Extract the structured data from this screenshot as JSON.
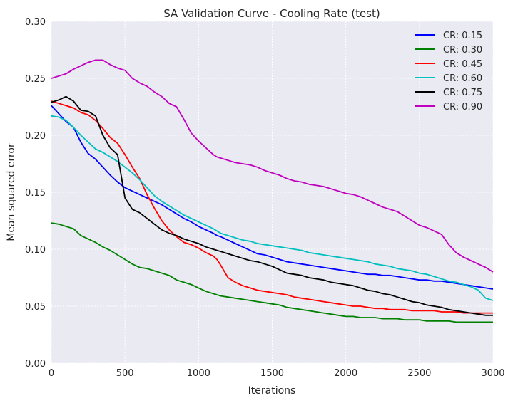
{
  "chart_data": {
    "type": "line",
    "title": "SA Validation Curve - Cooling Rate (test)",
    "xlabel": "Iterations",
    "ylabel": "Mean squared error",
    "xlim": [
      0,
      3000
    ],
    "ylim": [
      0,
      0.3
    ],
    "x_ticks": [
      "0",
      "500",
      "1000",
      "1500",
      "2000",
      "2500",
      "3000"
    ],
    "y_ticks": [
      "0.00",
      "0.05",
      "0.10",
      "0.15",
      "0.20",
      "0.25",
      "0.30"
    ],
    "grid": true,
    "legend_position": "top-right",
    "x": [
      0,
      50,
      100,
      150,
      200,
      250,
      300,
      350,
      400,
      450,
      500,
      550,
      600,
      650,
      700,
      750,
      800,
      850,
      900,
      950,
      1000,
      1050,
      1100,
      1125,
      1150,
      1200,
      1250,
      1300,
      1350,
      1400,
      1450,
      1500,
      1550,
      1600,
      1650,
      1700,
      1750,
      1800,
      1850,
      1900,
      1950,
      2000,
      2050,
      2100,
      2150,
      2200,
      2250,
      2300,
      2350,
      2400,
      2450,
      2500,
      2550,
      2600,
      2650,
      2700,
      2750,
      2800,
      2850,
      2900,
      2950,
      3000
    ],
    "series": [
      {
        "name": "CR: 0.15",
        "color": "#0000ff",
        "values": [
          0.226,
          0.219,
          0.212,
          0.207,
          0.194,
          0.184,
          0.179,
          0.172,
          0.165,
          0.159,
          0.154,
          0.151,
          0.148,
          0.145,
          0.142,
          0.139,
          0.135,
          0.131,
          0.127,
          0.124,
          0.12,
          0.117,
          0.114,
          0.112,
          0.111,
          0.108,
          0.105,
          0.102,
          0.099,
          0.096,
          0.095,
          0.093,
          0.091,
          0.089,
          0.088,
          0.087,
          0.086,
          0.085,
          0.084,
          0.083,
          0.082,
          0.081,
          0.08,
          0.079,
          0.078,
          0.078,
          0.077,
          0.077,
          0.076,
          0.075,
          0.074,
          0.073,
          0.073,
          0.072,
          0.072,
          0.071,
          0.07,
          0.069,
          0.068,
          0.067,
          0.066,
          0.065
        ]
      },
      {
        "name": "CR: 0.30",
        "color": "#008000",
        "values": [
          0.123,
          0.122,
          0.12,
          0.118,
          0.112,
          0.109,
          0.106,
          0.102,
          0.099,
          0.095,
          0.091,
          0.087,
          0.084,
          0.083,
          0.081,
          0.079,
          0.077,
          0.073,
          0.071,
          0.069,
          0.066,
          0.063,
          0.061,
          0.06,
          0.059,
          0.058,
          0.057,
          0.056,
          0.055,
          0.054,
          0.053,
          0.052,
          0.051,
          0.049,
          0.048,
          0.047,
          0.046,
          0.045,
          0.044,
          0.043,
          0.042,
          0.041,
          0.041,
          0.04,
          0.04,
          0.04,
          0.039,
          0.039,
          0.039,
          0.038,
          0.038,
          0.038,
          0.037,
          0.037,
          0.037,
          0.037,
          0.036,
          0.036,
          0.036,
          0.036,
          0.036,
          0.036
        ]
      },
      {
        "name": "CR: 0.45",
        "color": "#ff0000",
        "values": [
          0.23,
          0.228,
          0.226,
          0.224,
          0.22,
          0.218,
          0.213,
          0.206,
          0.198,
          0.193,
          0.183,
          0.172,
          0.162,
          0.148,
          0.136,
          0.125,
          0.117,
          0.111,
          0.106,
          0.104,
          0.101,
          0.097,
          0.094,
          0.091,
          0.086,
          0.075,
          0.071,
          0.068,
          0.066,
          0.064,
          0.063,
          0.062,
          0.061,
          0.06,
          0.058,
          0.057,
          0.056,
          0.055,
          0.054,
          0.053,
          0.052,
          0.051,
          0.05,
          0.05,
          0.049,
          0.048,
          0.048,
          0.047,
          0.047,
          0.047,
          0.046,
          0.046,
          0.046,
          0.046,
          0.045,
          0.045,
          0.045,
          0.044,
          0.044,
          0.044,
          0.044,
          0.044
        ]
      },
      {
        "name": "CR: 0.60",
        "color": "#00bfbf",
        "values": [
          0.217,
          0.216,
          0.213,
          0.207,
          0.2,
          0.194,
          0.188,
          0.185,
          0.181,
          0.177,
          0.172,
          0.167,
          0.161,
          0.154,
          0.147,
          0.142,
          0.138,
          0.134,
          0.13,
          0.127,
          0.124,
          0.121,
          0.118,
          0.116,
          0.114,
          0.112,
          0.11,
          0.108,
          0.107,
          0.105,
          0.104,
          0.103,
          0.102,
          0.101,
          0.1,
          0.099,
          0.097,
          0.096,
          0.095,
          0.094,
          0.093,
          0.092,
          0.091,
          0.09,
          0.089,
          0.087,
          0.086,
          0.085,
          0.083,
          0.082,
          0.081,
          0.079,
          0.078,
          0.076,
          0.074,
          0.072,
          0.071,
          0.069,
          0.067,
          0.064,
          0.057,
          0.055
        ]
      },
      {
        "name": "CR: 0.75",
        "color": "#000000",
        "values": [
          0.229,
          0.231,
          0.234,
          0.23,
          0.222,
          0.221,
          0.217,
          0.2,
          0.189,
          0.183,
          0.145,
          0.135,
          0.132,
          0.127,
          0.122,
          0.117,
          0.114,
          0.112,
          0.109,
          0.107,
          0.105,
          0.102,
          0.1,
          0.099,
          0.098,
          0.096,
          0.094,
          0.092,
          0.09,
          0.089,
          0.087,
          0.085,
          0.082,
          0.079,
          0.078,
          0.077,
          0.075,
          0.074,
          0.073,
          0.071,
          0.07,
          0.069,
          0.068,
          0.066,
          0.064,
          0.063,
          0.061,
          0.06,
          0.058,
          0.056,
          0.054,
          0.053,
          0.051,
          0.05,
          0.049,
          0.047,
          0.046,
          0.045,
          0.044,
          0.043,
          0.042,
          0.042
        ]
      },
      {
        "name": "CR: 0.90",
        "color": "#bf00bf",
        "values": [
          0.25,
          0.252,
          0.254,
          0.258,
          0.261,
          0.264,
          0.266,
          0.266,
          0.262,
          0.259,
          0.257,
          0.25,
          0.246,
          0.243,
          0.238,
          0.234,
          0.228,
          0.225,
          0.214,
          0.202,
          0.195,
          0.189,
          0.183,
          0.181,
          0.18,
          0.178,
          0.176,
          0.175,
          0.174,
          0.172,
          0.169,
          0.167,
          0.165,
          0.162,
          0.16,
          0.159,
          0.157,
          0.156,
          0.155,
          0.153,
          0.151,
          0.149,
          0.148,
          0.146,
          0.143,
          0.14,
          0.137,
          0.135,
          0.133,
          0.129,
          0.125,
          0.121,
          0.119,
          0.116,
          0.113,
          0.104,
          0.097,
          0.093,
          0.09,
          0.087,
          0.084,
          0.08
        ]
      }
    ]
  }
}
